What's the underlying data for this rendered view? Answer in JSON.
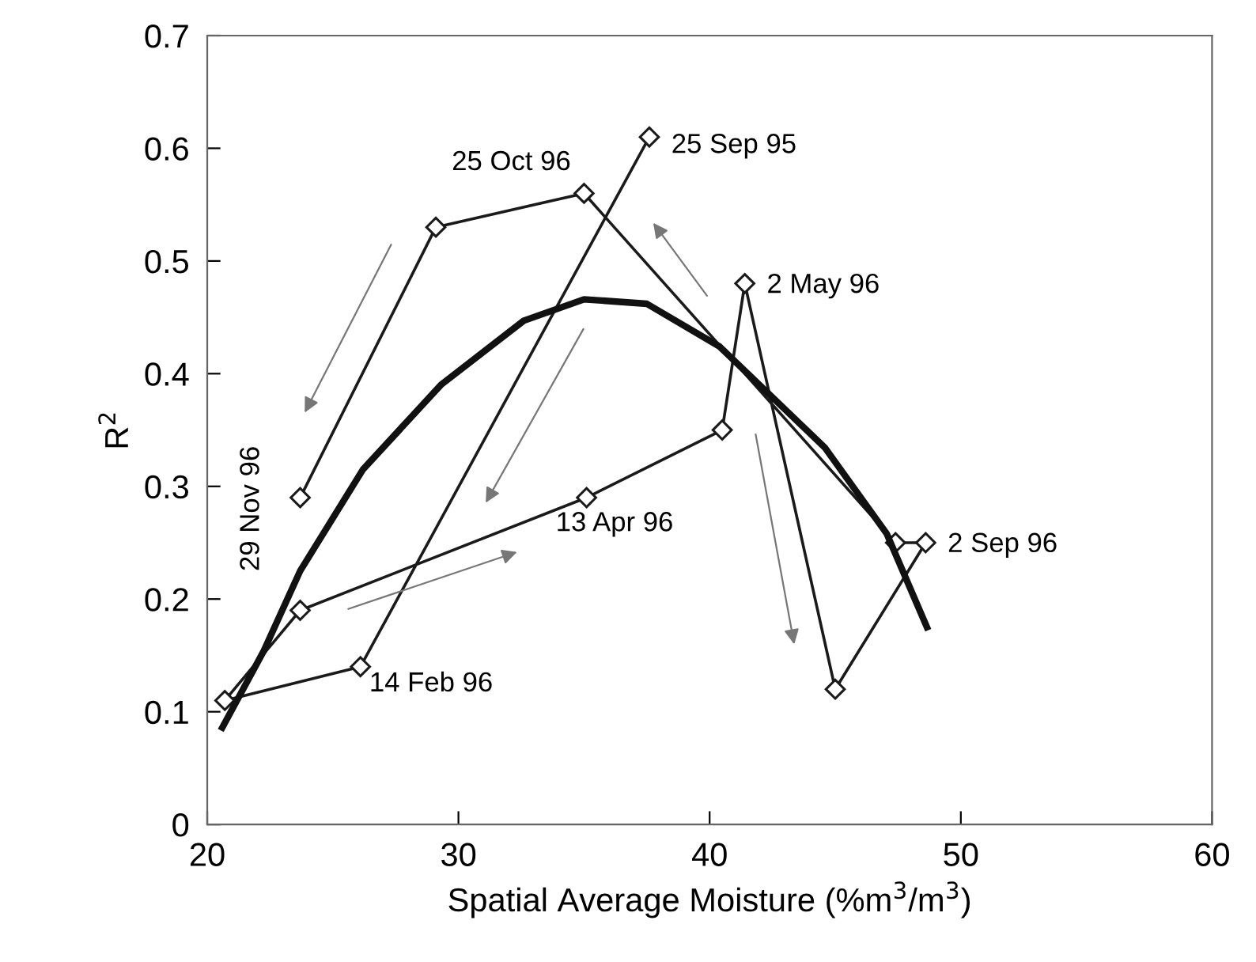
{
  "chart_data": {
    "type": "line",
    "xlabel": "Spatial Average Moisture (%m$^{3}$/m$^{3}$)",
    "ylabel": "R$^{2}$",
    "xlim": [
      20,
      60
    ],
    "xticks": [
      20,
      30,
      40,
      50,
      60
    ],
    "ylim": [
      0,
      0.7
    ],
    "yticks": [
      0,
      0.1,
      0.2,
      0.3,
      0.4,
      0.5,
      0.6,
      0.7
    ],
    "grid": false,
    "series": [
      {
        "color": "#1a1a1a",
        "marker": "diamond",
        "line_style": "solid",
        "x": [
          37.6,
          26.1,
          20.7,
          23.7,
          35.1,
          40.5,
          41.4,
          45.0,
          48.6,
          47.4,
          35.0,
          29.1,
          23.7
        ],
        "values": [
          0.61,
          0.14,
          0.11,
          0.19,
          0.29,
          0.35,
          0.48,
          0.12,
          0.25,
          0.25,
          0.56,
          0.53,
          0.29
        ]
      },
      {
        "color": "#111111",
        "marker": "none",
        "line_style": "solid",
        "x": [
          20.6,
          22.25,
          23.7,
          26.2,
          29.3,
          32.6,
          35.0,
          37.5,
          40.4,
          44.6,
          47.05,
          48.65
        ],
        "values": [
          0.086,
          0.154,
          0.225,
          0.315,
          0.39,
          0.447,
          0.466,
          0.462,
          0.424,
          0.334,
          0.258,
          0.175
        ]
      }
    ],
    "annotations": [
      {
        "text": "25 Sep 95",
        "x": 37.6,
        "y": 0.61
      },
      {
        "text": "14 Feb 96",
        "x": 26.1,
        "y": 0.14
      },
      {
        "text": "13 Apr 96",
        "x": 35.1,
        "y": 0.29
      },
      {
        "text": "2 May 96",
        "x": 41.4,
        "y": 0.48
      },
      {
        "text": "2 Sep 96",
        "x": 48.6,
        "y": 0.25
      },
      {
        "text": "25 Oct 96",
        "x": 35.0,
        "y": 0.56
      },
      {
        "text": "29 Nov 96",
        "x": 23.7,
        "y": 0.29
      }
    ]
  }
}
